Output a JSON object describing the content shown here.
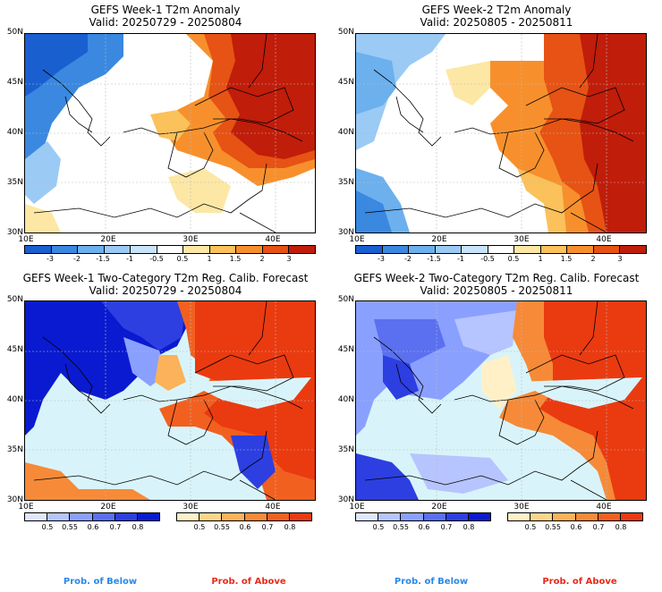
{
  "panels": [
    {
      "title_line1": "GEFS Week-1 T2m Anomaly",
      "title_line2": "Valid: 20250729 - 20250804"
    },
    {
      "title_line1": "GEFS Week-2 T2m Anomaly",
      "title_line2": "Valid: 20250805 - 20250811"
    },
    {
      "title_line1": "GEFS Week-1 Two-Category T2m Reg. Calib. Forecast",
      "title_line2": "Valid: 20250729 - 20250804"
    },
    {
      "title_line1": "GEFS Week-2 Two-Category T2m Reg. Calib. Forecast",
      "title_line2": "Valid: 20250805 - 20250811"
    }
  ],
  "lat_labels": [
    "50N",
    "45N",
    "40N",
    "35N",
    "30N"
  ],
  "lon_labels": [
    "10E",
    "20E",
    "30E",
    "40E"
  ],
  "anomaly_scale": {
    "labels": [
      "-3",
      "-2",
      "-1.5",
      "-1",
      "-0.5",
      "0.5",
      "1",
      "1.5",
      "2",
      "3"
    ],
    "colors": [
      "#1a5fd0",
      "#3a88e0",
      "#6cb0ee",
      "#9bcaf4",
      "#c8e4fa",
      "#ffffff",
      "#fde7a5",
      "#fbc15a",
      "#f7902c",
      "#e65314",
      "#c01d0a"
    ]
  },
  "prob_below_scale": {
    "labels": [
      "0.5",
      "0.55",
      "0.6",
      "0.7",
      "0.8"
    ],
    "colors": [
      "#dfe6ff",
      "#b6c4ff",
      "#8aa0ff",
      "#5a70f0",
      "#2d3fe0",
      "#0a1ad0"
    ]
  },
  "prob_above_scale": {
    "labels": [
      "0.5",
      "0.55",
      "0.6",
      "0.7",
      "0.8"
    ],
    "colors": [
      "#fff0c8",
      "#fdd58a",
      "#fbb25a",
      "#f68a38",
      "#f26020",
      "#ea3a10"
    ]
  },
  "legend": {
    "below": "Prob. of Below",
    "above": "Prob. of Above"
  },
  "colors": {
    "below_text": "#2a88e8",
    "above_text": "#e82a1a",
    "sea_light": "#d8f4fa"
  }
}
